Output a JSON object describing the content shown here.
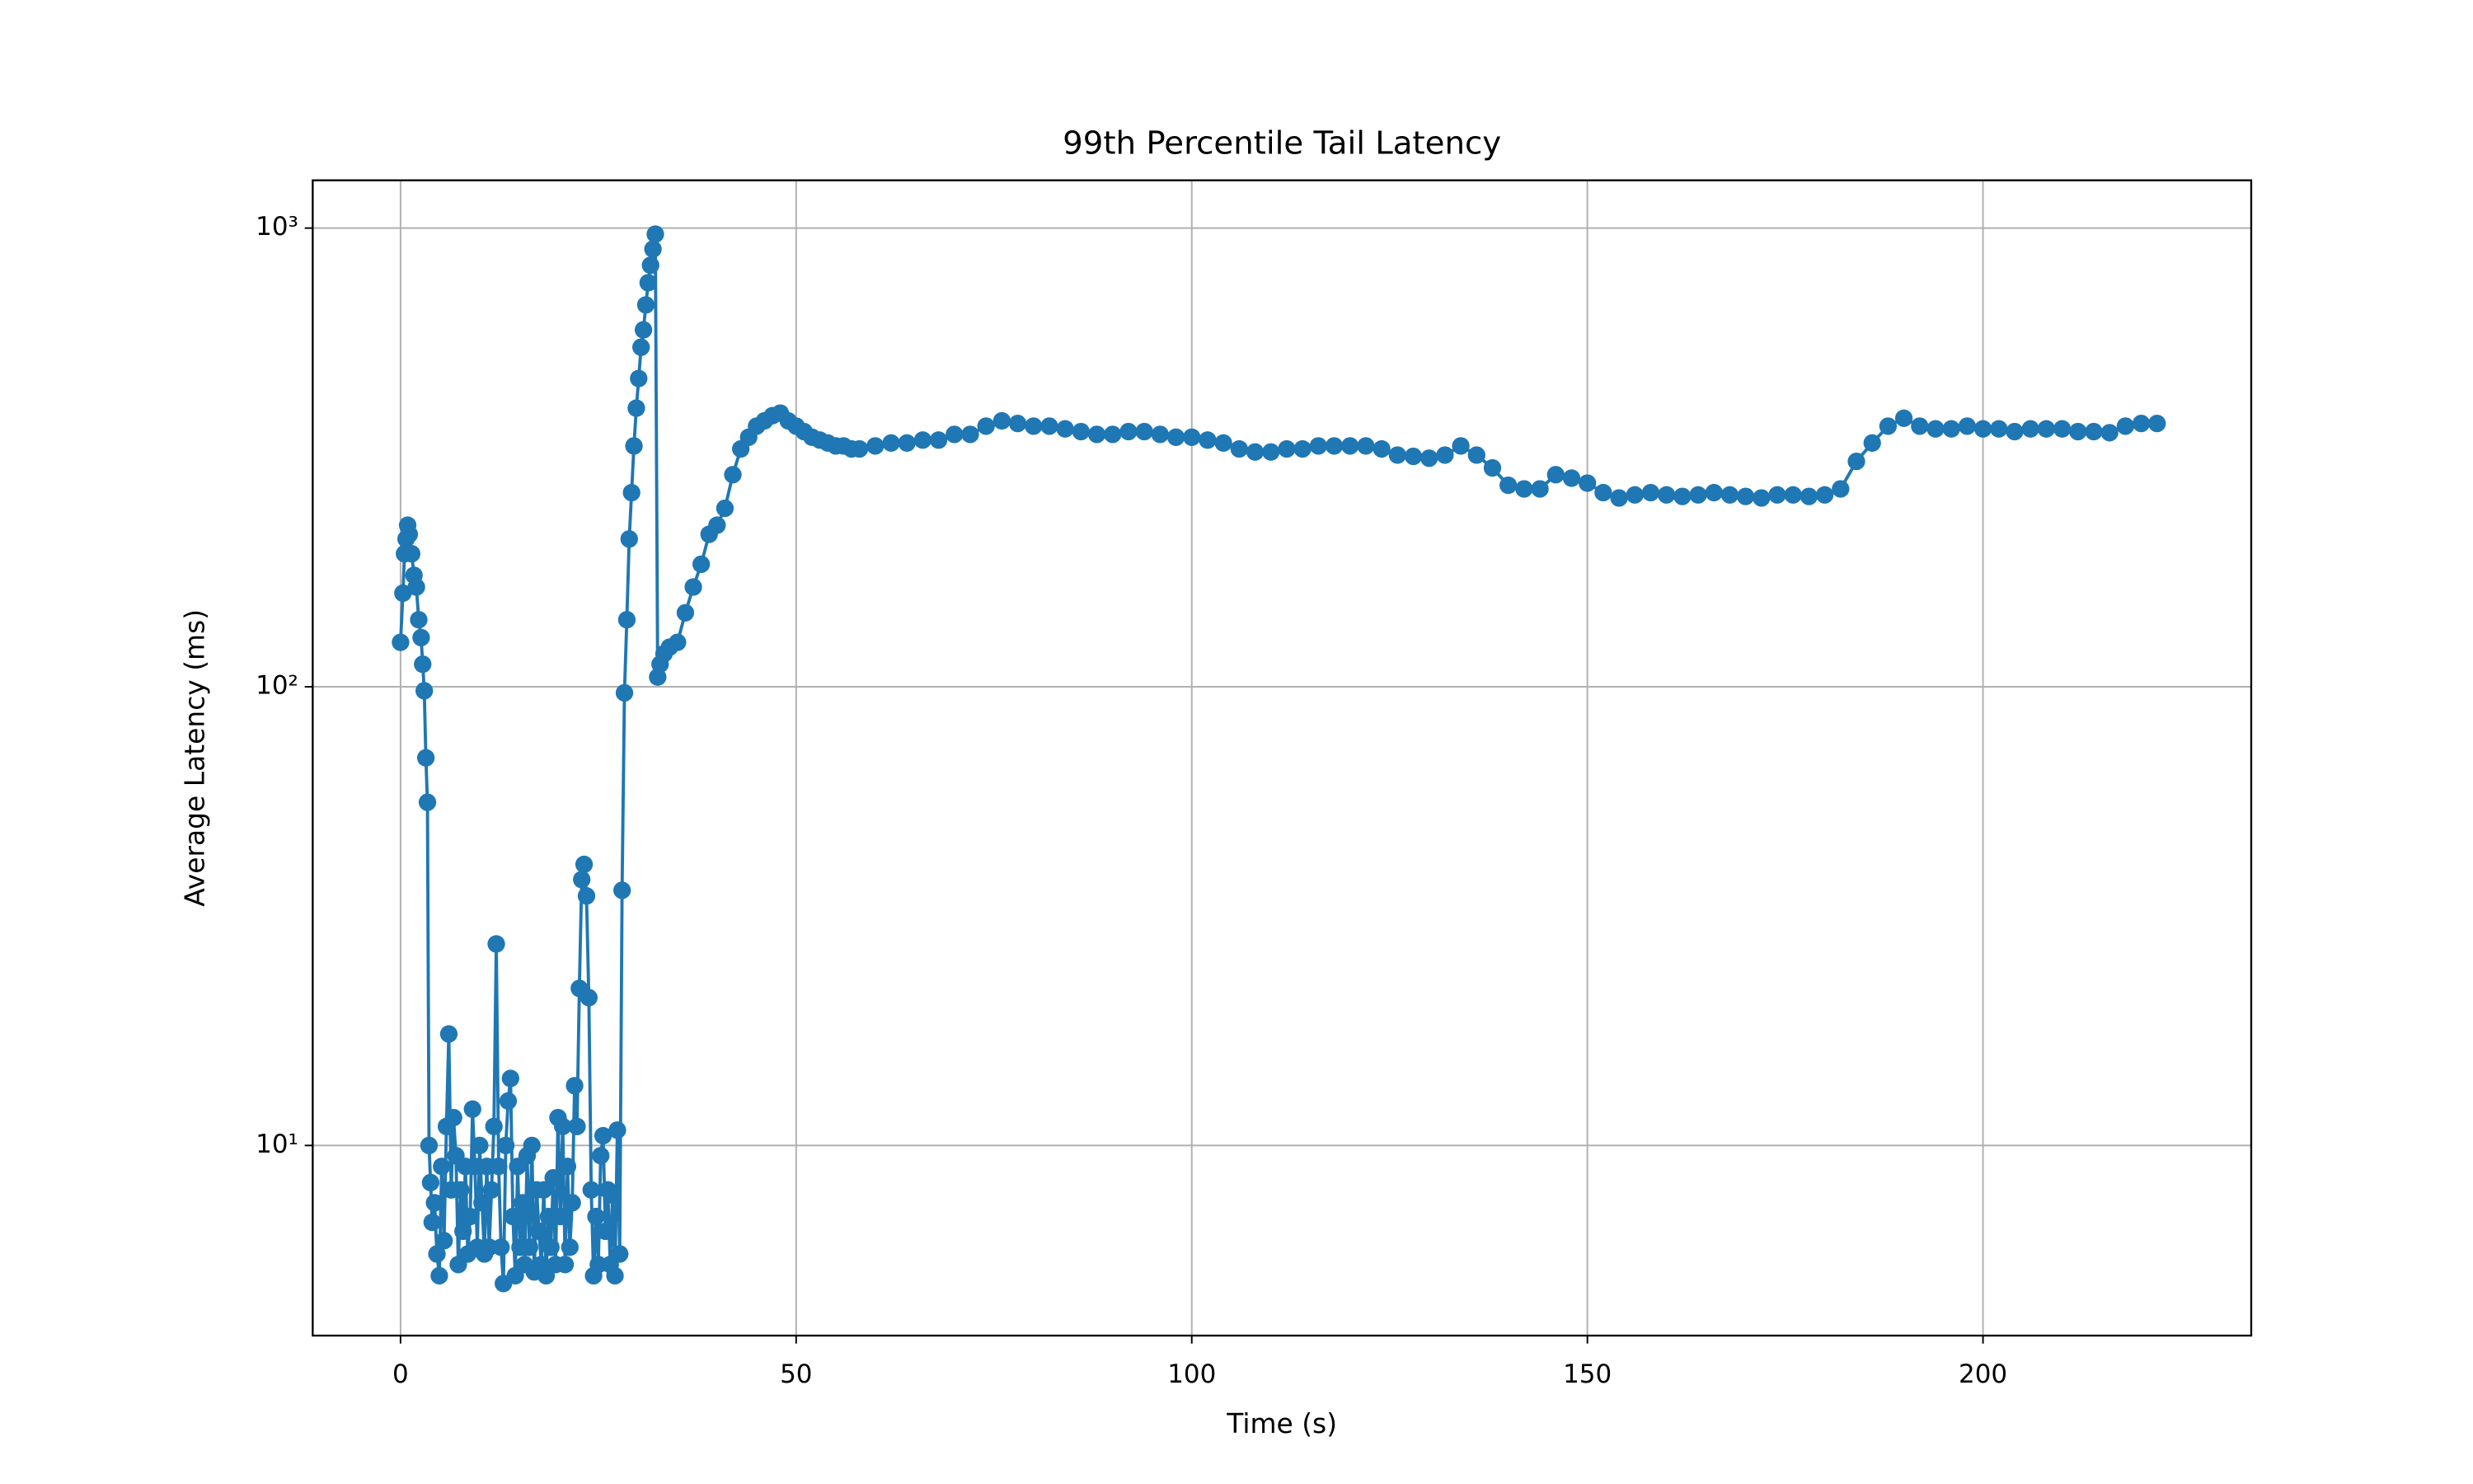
{
  "chart_data": {
    "type": "line",
    "title": "99th Percentile Tail Latency",
    "xlabel": "Time (s)",
    "ylabel": "Average Latency (ms)",
    "yscale": "log",
    "grid": true,
    "color": "#1f77b4",
    "marker": "circle",
    "xlim": [
      -11.1,
      233.9
    ],
    "xticks": [
      0,
      50,
      100,
      150,
      200
    ],
    "ylim": [
      3.85,
      1271
    ],
    "yticks": [
      {
        "value": 10,
        "label": "10¹"
      },
      {
        "value": 100,
        "label": "10²"
      },
      {
        "value": 1000,
        "label": "10³"
      }
    ],
    "x": [
      0,
      0.3,
      0.5,
      0.7,
      0.9,
      1.1,
      1.4,
      1.7,
      2.0,
      2.3,
      2.6,
      2.8,
      3.0,
      3.2,
      3.4,
      3.6,
      3.8,
      4.0,
      4.3,
      4.6,
      4.9,
      5.2,
      5.5,
      5.8,
      6.1,
      6.4,
      6.7,
      7.0,
      7.3,
      7.6,
      7.9,
      8.2,
      8.5,
      8.8,
      9.1,
      9.4,
      9.7,
      10.0,
      10.3,
      10.6,
      10.9,
      11.2,
      11.5,
      11.8,
      12.1,
      12.4,
      12.7,
      13.0,
      13.3,
      13.6,
      13.9,
      14.2,
      14.5,
      14.8,
      15.1,
      15.4,
      15.7,
      16.0,
      16.3,
      16.6,
      16.9,
      17.2,
      17.5,
      17.8,
      18.1,
      18.4,
      18.7,
      19.0,
      19.3,
      19.6,
      19.9,
      20.2,
      20.5,
      20.8,
      21.1,
      21.4,
      21.7,
      22.0,
      22.3,
      22.6,
      22.9,
      23.2,
      23.5,
      23.8,
      24.1,
      24.4,
      24.7,
      25.0,
      25.3,
      25.6,
      25.9,
      26.2,
      26.5,
      26.8,
      27.1,
      27.4,
      27.7,
      28.0,
      28.3,
      28.6,
      28.9,
      29.2,
      29.5,
      29.8,
      30.1,
      30.4,
      30.7,
      31.0,
      31.3,
      31.6,
      31.9,
      32.2,
      32.5,
      32.8,
      33.3,
      34,
      35,
      36,
      37,
      38,
      39,
      40,
      41,
      42,
      43,
      44,
      45,
      46,
      47,
      48,
      49,
      50,
      51,
      52,
      53,
      54,
      55,
      56,
      57,
      58,
      60,
      62,
      64,
      66,
      68,
      70,
      72,
      74,
      76,
      78,
      80,
      82,
      84,
      86,
      88,
      90,
      92,
      94,
      96,
      98,
      100,
      102,
      104,
      106,
      108,
      110,
      112,
      114,
      116,
      118,
      120,
      122,
      124,
      126,
      128,
      130,
      132,
      134,
      136,
      138,
      140,
      142,
      144,
      146,
      148,
      150,
      152,
      154,
      156,
      158,
      160,
      162,
      164,
      166,
      168,
      170,
      172,
      174,
      176,
      178,
      180,
      182,
      184,
      186,
      188,
      190,
      192,
      194,
      196,
      198,
      200,
      202,
      204,
      206,
      208,
      210,
      212,
      214,
      216,
      218,
      220,
      222
    ],
    "values": [
      125,
      160,
      195,
      210,
      225,
      215,
      195,
      175,
      165,
      140,
      128,
      112,
      98,
      70,
      56,
      10,
      8.3,
      6.8,
      7.5,
      5.8,
      5.2,
      9,
      6.2,
      11,
      17.5,
      8,
      11.5,
      9.5,
      5.5,
      8,
      6.5,
      9,
      5.8,
      7,
      12,
      9,
      6,
      10,
      7.5,
      5.8,
      9,
      6,
      8,
      11,
      27.5,
      9,
      6,
      5,
      10,
      12.5,
      14,
      7,
      5.2,
      9,
      6,
      7.5,
      5.5,
      9.5,
      6,
      10,
      5.3,
      8,
      6.5,
      5.5,
      8,
      5.2,
      7,
      6,
      8.5,
      5.5,
      11.5,
      7,
      11,
      5.5,
      9,
      6,
      7.5,
      13.5,
      11,
      22,
      38,
      41,
      35,
      21,
      8,
      5.2,
      7,
      5.5,
      9.5,
      10.5,
      6.5,
      8,
      5.5,
      7.8,
      5.2,
      10.8,
      5.8,
      36,
      97,
      140,
      210,
      265,
      335,
      405,
      470,
      550,
      600,
      680,
      760,
      830,
      900,
      970,
      105,
      112,
      118,
      122,
      125,
      145,
      165,
      185,
      215,
      225,
      245,
      290,
      330,
      350,
      370,
      380,
      390,
      395,
      380,
      370,
      360,
      350,
      345,
      340,
      335,
      335,
      330,
      330,
      335,
      340,
      340,
      345,
      345,
      355,
      355,
      370,
      380,
      375,
      370,
      370,
      365,
      360,
      355,
      355,
      360,
      360,
      355,
      350,
      350,
      345,
      340,
      330,
      325,
      325,
      330,
      330,
      335,
      335,
      335,
      335,
      330,
      320,
      318,
      315,
      320,
      335,
      320,
      300,
      275,
      270,
      270,
      290,
      285,
      278,
      265,
      258,
      262,
      265,
      262,
      260,
      262,
      265,
      262,
      260,
      258,
      262,
      262,
      260,
      262,
      270,
      310,
      340,
      370,
      385,
      370,
      365,
      365,
      370,
      365,
      365,
      360,
      365,
      365,
      365,
      360,
      360,
      358,
      370,
      375,
      375
    ]
  }
}
